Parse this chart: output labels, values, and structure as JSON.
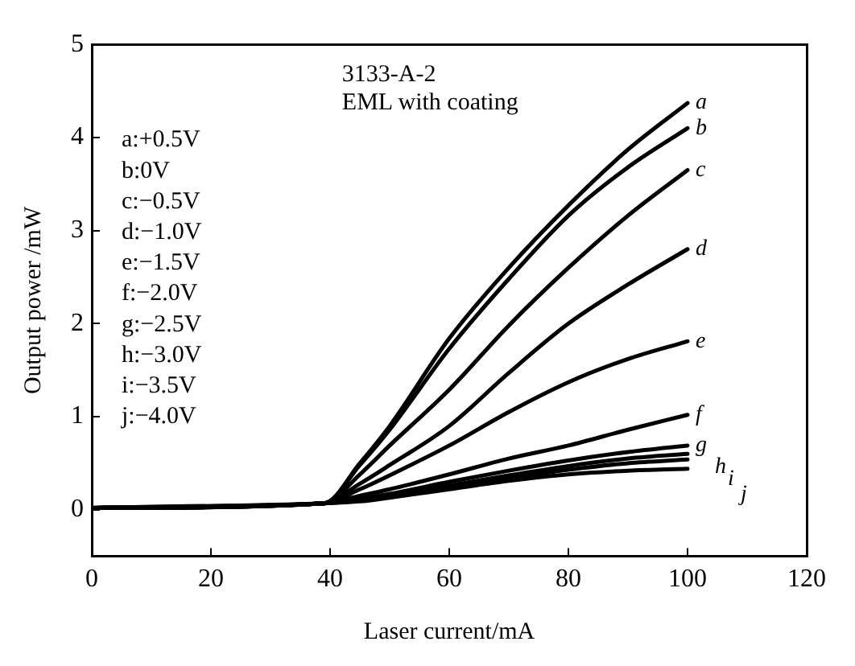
{
  "chart_data": {
    "type": "line",
    "xlabel": "Laser current/mA",
    "ylabel": "Output power /mW",
    "x": [
      0,
      39,
      45,
      50,
      60,
      70,
      80,
      90,
      100
    ],
    "series": [
      {
        "name": "a",
        "color": "#000000",
        "values": [
          0.02,
          0.07,
          0.5,
          0.9,
          1.84,
          2.6,
          3.27,
          3.87,
          4.37
        ]
      },
      {
        "name": "b",
        "color": "#000000",
        "values": [
          0.02,
          0.07,
          0.48,
          0.86,
          1.73,
          2.48,
          3.16,
          3.68,
          4.1
        ]
      },
      {
        "name": "c",
        "color": "#000000",
        "values": [
          0.02,
          0.07,
          0.38,
          0.69,
          1.29,
          1.98,
          2.6,
          3.16,
          3.65
        ]
      },
      {
        "name": "d",
        "color": "#000000",
        "values": [
          0.02,
          0.07,
          0.28,
          0.48,
          0.9,
          1.47,
          2.0,
          2.42,
          2.8
        ]
      },
      {
        "name": "e",
        "color": "#000000",
        "values": [
          0.02,
          0.07,
          0.22,
          0.37,
          0.69,
          1.05,
          1.37,
          1.62,
          1.81
        ]
      },
      {
        "name": "f",
        "color": "#000000",
        "values": [
          0.02,
          0.07,
          0.15,
          0.22,
          0.38,
          0.55,
          0.69,
          0.86,
          1.02
        ]
      },
      {
        "name": "g",
        "color": "#000000",
        "values": [
          0.02,
          0.07,
          0.12,
          0.17,
          0.3,
          0.42,
          0.53,
          0.62,
          0.69
        ]
      },
      {
        "name": "h",
        "color": "#000000",
        "values": [
          0.02,
          0.07,
          0.11,
          0.15,
          0.26,
          0.37,
          0.47,
          0.55,
          0.6
        ]
      },
      {
        "name": "i",
        "color": "#000000",
        "values": [
          0.02,
          0.07,
          0.1,
          0.14,
          0.24,
          0.34,
          0.43,
          0.5,
          0.54
        ]
      },
      {
        "name": "j",
        "color": "#000000",
        "values": [
          0.02,
          0.07,
          0.09,
          0.13,
          0.22,
          0.31,
          0.38,
          0.42,
          0.44
        ]
      }
    ],
    "xlim": [
      0,
      120
    ],
    "xticks": [
      0,
      20,
      40,
      60,
      80,
      100,
      120
    ],
    "ylim": [
      -0.5,
      5
    ],
    "yticks": [
      0,
      1,
      2,
      3,
      4,
      5
    ],
    "grid": false,
    "legend": false,
    "marker": "none",
    "line_style": "solid",
    "annotations": [
      "3133-A-2",
      "EML with coating",
      "a:+0.5V",
      "b:0V",
      "c:−0.5V",
      "d:−1.0V",
      "e:−1.5V",
      "f:−2.0V",
      "g:−2.5V",
      "h:−3.0V",
      "i:−3.5V",
      "j:−4.0V"
    ]
  }
}
